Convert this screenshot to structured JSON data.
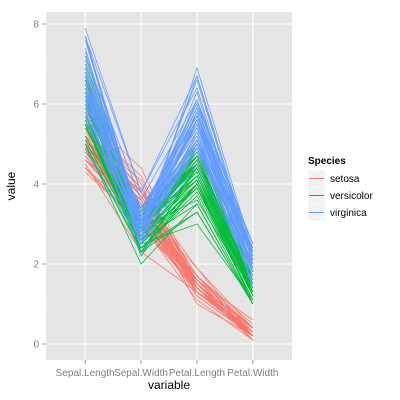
{
  "chart_data": {
    "type": "line",
    "title": "",
    "xlabel": "variable",
    "ylabel": "value",
    "categories": [
      "Sepal.Length",
      "Sepal.Width",
      "Petal.Length",
      "Petal.Width"
    ],
    "ylim": [
      -0.4,
      8.3
    ],
    "yticks": [
      0,
      2,
      4,
      6,
      8
    ],
    "grid": true,
    "legend": {
      "title": "Species",
      "position": "right"
    },
    "series": [
      {
        "name": "setosa",
        "color": "#F8766D",
        "lines": [
          [
            5.1,
            3.5,
            1.4,
            0.2
          ],
          [
            4.9,
            3.0,
            1.4,
            0.2
          ],
          [
            4.7,
            3.2,
            1.3,
            0.2
          ],
          [
            4.6,
            3.1,
            1.5,
            0.2
          ],
          [
            5.0,
            3.6,
            1.4,
            0.2
          ],
          [
            5.4,
            3.9,
            1.7,
            0.4
          ],
          [
            4.6,
            3.4,
            1.4,
            0.3
          ],
          [
            5.0,
            3.4,
            1.5,
            0.2
          ],
          [
            4.4,
            2.9,
            1.4,
            0.2
          ],
          [
            4.9,
            3.1,
            1.5,
            0.1
          ],
          [
            5.4,
            3.7,
            1.5,
            0.2
          ],
          [
            4.8,
            3.4,
            1.6,
            0.2
          ],
          [
            4.8,
            3.0,
            1.4,
            0.1
          ],
          [
            4.3,
            3.0,
            1.1,
            0.1
          ],
          [
            5.8,
            4.0,
            1.2,
            0.2
          ],
          [
            5.7,
            4.4,
            1.5,
            0.4
          ],
          [
            5.4,
            3.9,
            1.3,
            0.4
          ],
          [
            5.1,
            3.5,
            1.4,
            0.3
          ],
          [
            5.7,
            3.8,
            1.7,
            0.3
          ],
          [
            5.1,
            3.8,
            1.5,
            0.3
          ],
          [
            5.4,
            3.4,
            1.7,
            0.2
          ],
          [
            5.1,
            3.7,
            1.5,
            0.4
          ],
          [
            4.6,
            3.6,
            1.0,
            0.2
          ],
          [
            5.1,
            3.3,
            1.7,
            0.5
          ],
          [
            4.8,
            3.4,
            1.9,
            0.2
          ],
          [
            5.0,
            3.0,
            1.6,
            0.2
          ],
          [
            5.0,
            3.4,
            1.6,
            0.4
          ],
          [
            5.2,
            3.5,
            1.5,
            0.2
          ],
          [
            5.2,
            3.4,
            1.4,
            0.2
          ],
          [
            4.7,
            3.2,
            1.6,
            0.2
          ],
          [
            4.8,
            3.1,
            1.6,
            0.2
          ],
          [
            5.4,
            3.4,
            1.5,
            0.4
          ],
          [
            5.2,
            4.1,
            1.5,
            0.1
          ],
          [
            5.5,
            4.2,
            1.4,
            0.2
          ],
          [
            4.9,
            3.1,
            1.5,
            0.2
          ],
          [
            5.0,
            3.2,
            1.2,
            0.2
          ],
          [
            5.5,
            3.5,
            1.3,
            0.2
          ],
          [
            4.9,
            3.6,
            1.4,
            0.1
          ],
          [
            4.4,
            3.0,
            1.3,
            0.2
          ],
          [
            5.1,
            3.4,
            1.5,
            0.2
          ],
          [
            5.0,
            3.5,
            1.3,
            0.3
          ],
          [
            4.5,
            2.3,
            1.3,
            0.3
          ],
          [
            4.4,
            3.2,
            1.3,
            0.2
          ],
          [
            5.0,
            3.5,
            1.6,
            0.6
          ],
          [
            5.1,
            3.8,
            1.9,
            0.4
          ],
          [
            4.8,
            3.0,
            1.4,
            0.3
          ],
          [
            5.1,
            3.8,
            1.6,
            0.2
          ],
          [
            4.6,
            3.2,
            1.4,
            0.2
          ],
          [
            5.3,
            3.7,
            1.5,
            0.2
          ],
          [
            5.0,
            3.3,
            1.4,
            0.2
          ]
        ]
      },
      {
        "name": "versicolor",
        "color": "#00BA38",
        "lines": [
          [
            7.0,
            3.2,
            4.7,
            1.4
          ],
          [
            6.4,
            3.2,
            4.5,
            1.5
          ],
          [
            6.9,
            3.1,
            4.9,
            1.5
          ],
          [
            5.5,
            2.3,
            4.0,
            1.3
          ],
          [
            6.5,
            2.8,
            4.6,
            1.5
          ],
          [
            5.7,
            2.8,
            4.5,
            1.3
          ],
          [
            6.3,
            3.3,
            4.7,
            1.6
          ],
          [
            4.9,
            2.4,
            3.3,
            1.0
          ],
          [
            6.6,
            2.9,
            4.6,
            1.3
          ],
          [
            5.2,
            2.7,
            3.9,
            1.4
          ],
          [
            5.0,
            2.0,
            3.5,
            1.0
          ],
          [
            5.9,
            3.0,
            4.2,
            1.5
          ],
          [
            6.0,
            2.2,
            4.0,
            1.0
          ],
          [
            6.1,
            2.9,
            4.7,
            1.4
          ],
          [
            5.6,
            2.9,
            3.6,
            1.3
          ],
          [
            6.7,
            3.1,
            4.4,
            1.4
          ],
          [
            5.6,
            3.0,
            4.5,
            1.5
          ],
          [
            5.8,
            2.7,
            4.1,
            1.0
          ],
          [
            6.2,
            2.2,
            4.5,
            1.5
          ],
          [
            5.6,
            2.5,
            3.9,
            1.1
          ],
          [
            5.9,
            3.2,
            4.8,
            1.8
          ],
          [
            6.1,
            2.8,
            4.0,
            1.3
          ],
          [
            6.3,
            2.5,
            4.9,
            1.5
          ],
          [
            6.1,
            2.8,
            4.7,
            1.2
          ],
          [
            6.4,
            2.9,
            4.3,
            1.3
          ],
          [
            6.6,
            3.0,
            4.4,
            1.4
          ],
          [
            6.8,
            2.8,
            4.8,
            1.4
          ],
          [
            6.7,
            3.0,
            5.0,
            1.7
          ],
          [
            6.0,
            2.9,
            4.5,
            1.5
          ],
          [
            5.7,
            2.6,
            3.5,
            1.0
          ],
          [
            5.5,
            2.4,
            3.8,
            1.1
          ],
          [
            5.5,
            2.4,
            3.7,
            1.0
          ],
          [
            5.8,
            2.7,
            3.9,
            1.2
          ],
          [
            6.0,
            2.7,
            5.1,
            1.6
          ],
          [
            5.4,
            3.0,
            4.5,
            1.5
          ],
          [
            6.0,
            3.4,
            4.5,
            1.6
          ],
          [
            6.7,
            3.1,
            4.7,
            1.5
          ],
          [
            6.3,
            2.3,
            4.4,
            1.3
          ],
          [
            5.6,
            3.0,
            4.1,
            1.3
          ],
          [
            5.5,
            2.5,
            4.0,
            1.3
          ],
          [
            5.5,
            2.6,
            4.4,
            1.2
          ],
          [
            6.1,
            3.0,
            4.6,
            1.4
          ],
          [
            5.8,
            2.6,
            4.0,
            1.2
          ],
          [
            5.0,
            2.3,
            3.3,
            1.0
          ],
          [
            5.6,
            2.7,
            4.2,
            1.3
          ],
          [
            5.7,
            3.0,
            4.2,
            1.2
          ],
          [
            5.7,
            2.9,
            4.2,
            1.3
          ],
          [
            6.2,
            2.9,
            4.3,
            1.3
          ],
          [
            5.1,
            2.5,
            3.0,
            1.1
          ],
          [
            5.7,
            2.8,
            4.1,
            1.3
          ]
        ]
      },
      {
        "name": "virginica",
        "color": "#619CFF",
        "lines": [
          [
            6.3,
            3.3,
            6.0,
            2.5
          ],
          [
            5.8,
            2.7,
            5.1,
            1.9
          ],
          [
            7.1,
            3.0,
            5.9,
            2.1
          ],
          [
            6.3,
            2.9,
            5.6,
            1.8
          ],
          [
            6.5,
            3.0,
            5.8,
            2.2
          ],
          [
            7.6,
            3.0,
            6.6,
            2.1
          ],
          [
            4.9,
            2.5,
            4.5,
            1.7
          ],
          [
            7.3,
            2.9,
            6.3,
            1.8
          ],
          [
            6.7,
            2.5,
            5.8,
            1.8
          ],
          [
            7.2,
            3.6,
            6.1,
            2.5
          ],
          [
            6.5,
            3.2,
            5.1,
            2.0
          ],
          [
            6.4,
            2.7,
            5.3,
            1.9
          ],
          [
            6.8,
            3.0,
            5.5,
            2.1
          ],
          [
            5.7,
            2.5,
            5.0,
            2.0
          ],
          [
            5.8,
            2.8,
            5.1,
            2.4
          ],
          [
            6.4,
            3.2,
            5.3,
            2.3
          ],
          [
            6.5,
            3.0,
            5.5,
            1.8
          ],
          [
            7.7,
            3.8,
            6.7,
            2.2
          ],
          [
            7.7,
            2.6,
            6.9,
            2.3
          ],
          [
            6.0,
            2.2,
            5.0,
            1.5
          ],
          [
            6.9,
            3.2,
            5.7,
            2.3
          ],
          [
            5.6,
            2.8,
            4.9,
            2.0
          ],
          [
            7.7,
            2.8,
            6.7,
            2.0
          ],
          [
            6.3,
            2.7,
            4.9,
            1.8
          ],
          [
            6.7,
            3.3,
            5.7,
            2.1
          ],
          [
            7.2,
            3.2,
            6.0,
            1.8
          ],
          [
            6.2,
            2.8,
            4.8,
            1.8
          ],
          [
            6.1,
            3.0,
            4.9,
            1.8
          ],
          [
            6.4,
            2.8,
            5.6,
            2.1
          ],
          [
            7.2,
            3.0,
            5.8,
            1.6
          ],
          [
            7.4,
            2.8,
            6.1,
            1.9
          ],
          [
            7.9,
            3.8,
            6.4,
            2.0
          ],
          [
            6.4,
            2.8,
            5.6,
            2.2
          ],
          [
            6.3,
            2.8,
            5.1,
            1.5
          ],
          [
            6.1,
            2.6,
            5.6,
            1.4
          ],
          [
            7.7,
            3.0,
            6.1,
            2.3
          ],
          [
            6.3,
            3.4,
            5.6,
            2.4
          ],
          [
            6.4,
            3.1,
            5.5,
            1.8
          ],
          [
            6.0,
            3.0,
            4.8,
            1.8
          ],
          [
            6.9,
            3.1,
            5.4,
            2.1
          ],
          [
            6.7,
            3.1,
            5.6,
            2.4
          ],
          [
            6.9,
            3.1,
            5.1,
            2.3
          ],
          [
            5.8,
            2.7,
            5.1,
            1.9
          ],
          [
            6.8,
            3.2,
            5.9,
            2.3
          ],
          [
            6.7,
            3.3,
            5.7,
            2.5
          ],
          [
            6.7,
            3.0,
            5.2,
            2.3
          ],
          [
            6.3,
            2.5,
            5.0,
            1.9
          ],
          [
            6.5,
            3.0,
            5.2,
            2.0
          ],
          [
            6.2,
            3.4,
            5.4,
            2.3
          ],
          [
            5.9,
            3.0,
            5.1,
            1.8
          ]
        ]
      }
    ]
  }
}
